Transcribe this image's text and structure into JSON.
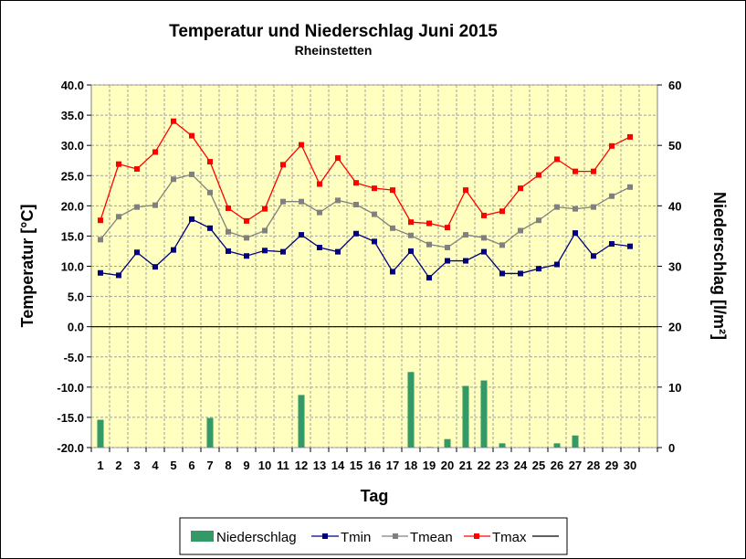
{
  "chart_data": {
    "type": "line",
    "title": "Temperatur und Niederschlag Juni 2015",
    "subtitle": "Rheinstetten",
    "xlabel": "Tag",
    "ylabel_left": "Temperatur [°C]",
    "ylabel_right": "Niederschlag [l/m²]",
    "ylim_left": [
      -20,
      40
    ],
    "ylim_right": [
      0,
      60
    ],
    "yticks_left": [
      "40.0",
      "35.0",
      "30.0",
      "25.0",
      "20.0",
      "15.0",
      "10.0",
      "5.0",
      "0.0",
      "-5.0",
      "-10.0",
      "-15.0",
      "-20.0"
    ],
    "yticks_right": [
      "60",
      "50",
      "40",
      "30",
      "20",
      "10",
      "0"
    ],
    "categories": [
      "1",
      "2",
      "3",
      "4",
      "5",
      "6",
      "7",
      "8",
      "9",
      "10",
      "11",
      "12",
      "13",
      "14",
      "15",
      "16",
      "17",
      "18",
      "19",
      "20",
      "21",
      "22",
      "23",
      "24",
      "25",
      "26",
      "27",
      "28",
      "29",
      "30"
    ],
    "grid": true,
    "legend_position": "bottom",
    "colors": {
      "plot_background": "#ffffc0",
      "grid": "#a0a0a0",
      "tmin": "#000080",
      "tmean": "#808080",
      "tmax": "#ff0000",
      "niederschlag": "#339966",
      "zero_line": "#000000"
    },
    "series": [
      {
        "name": "Niederschlag",
        "kind": "bar",
        "axis": "right",
        "values": [
          4.6,
          0,
          0,
          0,
          0,
          0,
          4.9,
          0,
          0,
          0,
          0,
          8.7,
          0,
          0,
          0,
          0,
          0,
          12.5,
          0.1,
          1.4,
          10.2,
          11.1,
          0.7,
          0,
          0,
          0.7,
          2,
          0,
          0,
          0
        ]
      },
      {
        "name": "Tmin",
        "kind": "line",
        "axis": "left",
        "values": [
          8.9,
          8.5,
          12.3,
          9.9,
          12.7,
          17.8,
          16.3,
          12.5,
          11.7,
          12.6,
          12.4,
          15.2,
          13.1,
          12.4,
          15.4,
          14.1,
          9.1,
          12.5,
          8.1,
          10.9,
          10.9,
          12.4,
          8.8,
          8.8,
          9.6,
          10.3,
          15.5,
          11.7,
          13.7,
          13.3
        ]
      },
      {
        "name": "Tmean",
        "kind": "line",
        "axis": "left",
        "values": [
          14.4,
          18.2,
          19.8,
          20.1,
          24.4,
          25.2,
          22.2,
          15.7,
          14.7,
          15.9,
          20.7,
          20.7,
          18.9,
          20.9,
          20.2,
          18.6,
          16.3,
          15.1,
          13.6,
          13.1,
          15.2,
          14.7,
          13.5,
          15.9,
          17.6,
          19.8,
          19.5,
          19.8,
          21.6,
          23.1
        ]
      },
      {
        "name": "Tmax",
        "kind": "line",
        "axis": "left",
        "values": [
          17.6,
          26.9,
          26.1,
          28.9,
          34.0,
          31.6,
          27.3,
          19.6,
          17.5,
          19.5,
          26.8,
          30.1,
          23.6,
          27.9,
          23.8,
          22.9,
          22.6,
          17.3,
          17.1,
          16.4,
          22.6,
          18.4,
          19.1,
          22.9,
          25.1,
          27.7,
          25.7,
          25.7,
          29.9,
          31.4
        ]
      }
    ],
    "legend": [
      "Niederschlag",
      "Tmin",
      "Tmean",
      "Tmax",
      ""
    ]
  }
}
